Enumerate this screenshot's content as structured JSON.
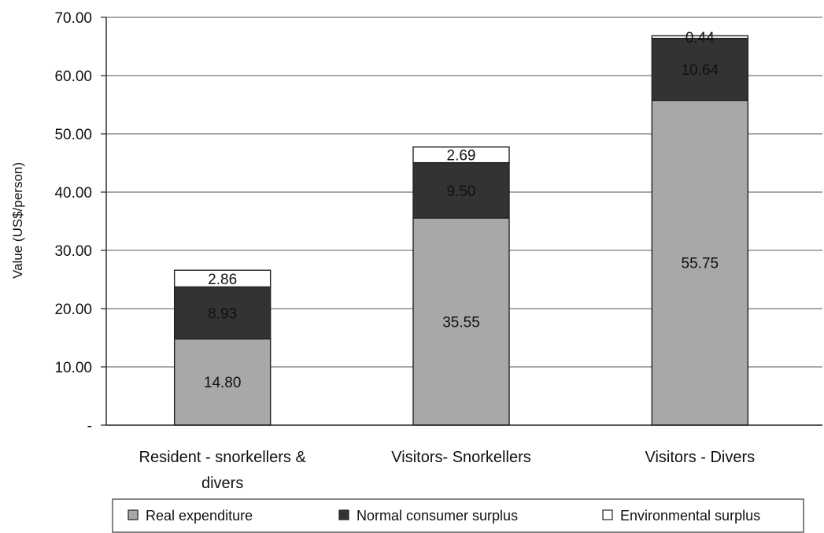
{
  "chart_data": {
    "type": "bar",
    "stacked": true,
    "ylabel": "Value (US$/person)",
    "xlabel": "",
    "ylim": [
      0,
      70
    ],
    "yticks": [
      0,
      10,
      20,
      30,
      40,
      50,
      60,
      70
    ],
    "ytick_labels": [
      "-",
      "10.00",
      "20.00",
      "30.00",
      "40.00",
      "50.00",
      "60.00",
      "70.00"
    ],
    "grid": true,
    "legend_position": "bottom",
    "categories": [
      [
        "Resident - snorkellers &",
        "divers"
      ],
      [
        "Visitors- Snorkellers"
      ],
      [
        "Visitors - Divers"
      ]
    ],
    "series": [
      {
        "name": "Real expenditure",
        "color": "#a8a8a8",
        "values": [
          14.8,
          35.55,
          55.75
        ],
        "labels": [
          "14.80",
          "35.55",
          "55.75"
        ]
      },
      {
        "name": "Normal consumer surplus",
        "color": "#333333",
        "values": [
          8.93,
          9.5,
          10.64
        ],
        "labels": [
          "8.93",
          "9.50",
          "10.64"
        ]
      },
      {
        "name": "Environmental surplus",
        "color": "#ffffff",
        "values": [
          2.86,
          2.69,
          0.44
        ],
        "labels": [
          "2.86",
          "2.69",
          "0.44"
        ]
      }
    ]
  }
}
